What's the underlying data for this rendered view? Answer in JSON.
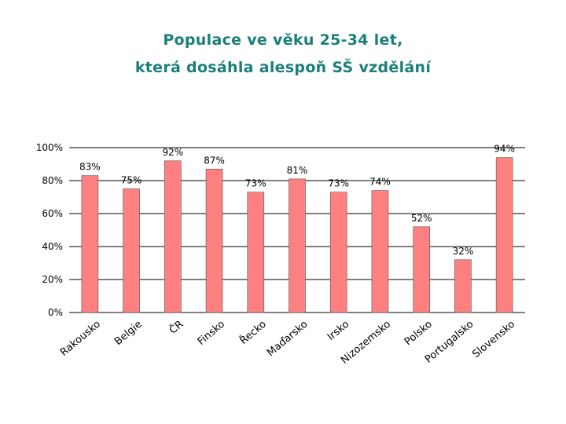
{
  "colors": {
    "title": "#1a7f7a",
    "bar_fill": "#ff8080",
    "bar_stroke": "#555555",
    "gridline": "#000000"
  },
  "chart_data": {
    "type": "bar",
    "title_line1": "Populace ve věku 25-34 let,",
    "title_line2": "která dosáhla alespoň SŠ vzdělání",
    "categories": [
      "Rakousko",
      "Belgie",
      "ČR",
      "Finsko",
      "Řecko",
      "Maďarsko",
      "Irsko",
      "Nizozemsko",
      "Polsko",
      "Portugalsko",
      "Slovensko"
    ],
    "values": [
      83,
      75,
      92,
      87,
      73,
      81,
      73,
      74,
      52,
      32,
      94
    ],
    "value_labels": [
      "83%",
      "75%",
      "92%",
      "87%",
      "73%",
      "81%",
      "73%",
      "74%",
      "52%",
      "32%",
      "94%"
    ],
    "ylim": [
      0,
      100
    ],
    "yticks": [
      0,
      20,
      40,
      60,
      80,
      100
    ],
    "ytick_labels": [
      "0%",
      "20%",
      "40%",
      "60%",
      "80%",
      "100%"
    ],
    "grid": true,
    "xlabel": "",
    "ylabel": ""
  }
}
